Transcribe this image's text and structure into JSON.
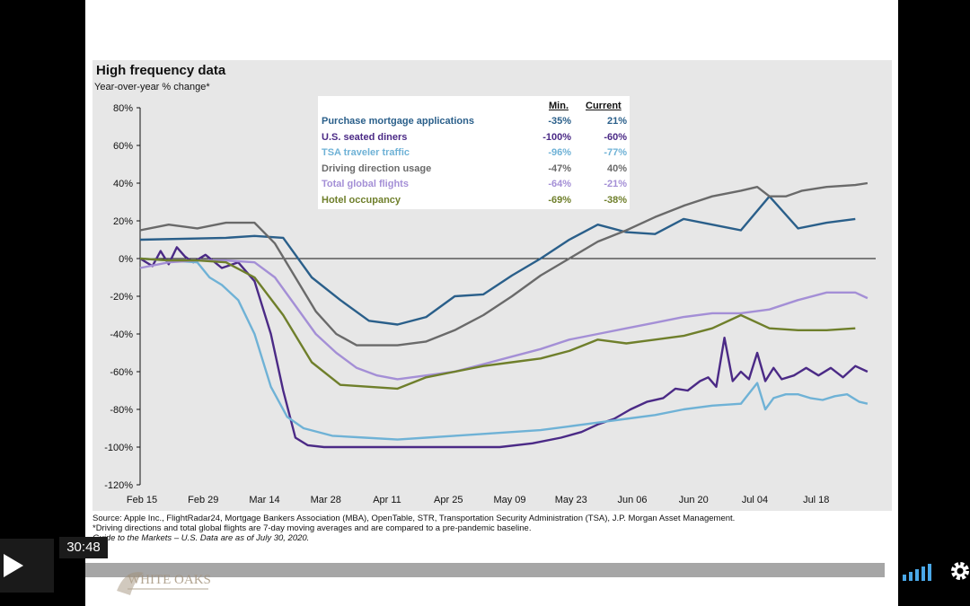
{
  "chart": {
    "title": "High frequency data",
    "subtitle": "Year-over-year % change*",
    "legend_headers": {
      "min": "Min.",
      "current": "Current"
    },
    "source": "Source: Apple Inc., FlightRadar24, Mortgage Bankers Association (MBA), OpenTable, STR, Transportation Security Administration (TSA), J.P. Morgan Asset Management. *Driving directions and total global flights are 7-day moving averages and are compared to a pre-pandemic baseline.",
    "source_line2": "Guide to the Markets – U.S. Data are as of July 30, 2020."
  },
  "player": {
    "timecode": "30:48",
    "logo_text": "WHITE OAKS",
    "play_icon": "play-icon",
    "volume_icon": "volume-icon",
    "settings_icon": "gear-icon"
  },
  "chart_data": {
    "type": "line",
    "title": "High frequency data",
    "subtitle": "Year-over-year % change*",
    "ylabel": "",
    "xlabel": "",
    "ylim": [
      -120,
      80
    ],
    "yticks": [
      "80%",
      "60%",
      "40%",
      "20%",
      "0%",
      "-20%",
      "-40%",
      "-60%",
      "-80%",
      "-100%",
      "-120%"
    ],
    "ytick_values": [
      80,
      60,
      40,
      20,
      0,
      -20,
      -40,
      -60,
      -80,
      -100,
      -120
    ],
    "xticks": [
      "Feb 15",
      "Feb 29",
      "Mar 14",
      "Mar 28",
      "Apr 11",
      "Apr 25",
      "May 09",
      "May 23",
      "Jun 06",
      "Jun 20",
      "Jul 04",
      "Jul 18"
    ],
    "xrange": [
      0,
      180
    ],
    "grid": false,
    "legend_position": "top-center",
    "series": [
      {
        "name": "Purchase mortgage applications",
        "color": "#2a5f8a",
        "min": "-35%",
        "current": "21%",
        "points": [
          [
            0,
            10
          ],
          [
            21,
            11
          ],
          [
            28,
            12
          ],
          [
            35,
            11
          ],
          [
            42,
            -10
          ],
          [
            49,
            -22
          ],
          [
            56,
            -33
          ],
          [
            63,
            -35
          ],
          [
            70,
            -31
          ],
          [
            77,
            -20
          ],
          [
            84,
            -19
          ],
          [
            91,
            -9
          ],
          [
            98,
            0
          ],
          [
            105,
            10
          ],
          [
            112,
            18
          ],
          [
            119,
            14
          ],
          [
            126,
            13
          ],
          [
            133,
            21
          ],
          [
            140,
            18
          ],
          [
            147,
            15
          ],
          [
            154,
            33
          ],
          [
            161,
            16
          ],
          [
            168,
            19
          ],
          [
            175,
            21
          ]
        ]
      },
      {
        "name": "U.S. seated diners",
        "color": "#4b2a86",
        "min": "-100%",
        "current": "-60%",
        "points": [
          [
            0,
            0
          ],
          [
            3,
            -4
          ],
          [
            5,
            4
          ],
          [
            7,
            -3
          ],
          [
            9,
            6
          ],
          [
            11,
            1
          ],
          [
            13,
            -2
          ],
          [
            16,
            2
          ],
          [
            20,
            -5
          ],
          [
            24,
            -2
          ],
          [
            28,
            -12
          ],
          [
            32,
            -40
          ],
          [
            35,
            -70
          ],
          [
            38,
            -95
          ],
          [
            41,
            -99
          ],
          [
            45,
            -100
          ],
          [
            60,
            -100
          ],
          [
            75,
            -100
          ],
          [
            88,
            -100
          ],
          [
            96,
            -98
          ],
          [
            103,
            -95
          ],
          [
            108,
            -92
          ],
          [
            112,
            -88
          ],
          [
            116,
            -85
          ],
          [
            120,
            -80
          ],
          [
            124,
            -76
          ],
          [
            128,
            -74
          ],
          [
            131,
            -69
          ],
          [
            134,
            -70
          ],
          [
            137,
            -65
          ],
          [
            139,
            -63
          ],
          [
            141,
            -68
          ],
          [
            143,
            -42
          ],
          [
            145,
            -65
          ],
          [
            147,
            -60
          ],
          [
            149,
            -64
          ],
          [
            151,
            -50
          ],
          [
            153,
            -65
          ],
          [
            155,
            -58
          ],
          [
            157,
            -64
          ],
          [
            160,
            -62
          ],
          [
            163,
            -58
          ],
          [
            166,
            -62
          ],
          [
            169,
            -58
          ],
          [
            172,
            -63
          ],
          [
            175,
            -57
          ],
          [
            178,
            -60
          ]
        ]
      },
      {
        "name": "TSA traveler traffic",
        "color": "#6fb2d6",
        "min": "-96%",
        "current": "-77%",
        "points": [
          [
            0,
            0
          ],
          [
            14,
            -2
          ],
          [
            17,
            -10
          ],
          [
            20,
            -14
          ],
          [
            24,
            -22
          ],
          [
            28,
            -40
          ],
          [
            32,
            -68
          ],
          [
            36,
            -84
          ],
          [
            40,
            -90
          ],
          [
            47,
            -94
          ],
          [
            55,
            -95
          ],
          [
            63,
            -96
          ],
          [
            70,
            -95
          ],
          [
            77,
            -94
          ],
          [
            84,
            -93
          ],
          [
            91,
            -92
          ],
          [
            98,
            -91
          ],
          [
            105,
            -89
          ],
          [
            112,
            -87
          ],
          [
            119,
            -85
          ],
          [
            126,
            -83
          ],
          [
            133,
            -80
          ],
          [
            140,
            -78
          ],
          [
            147,
            -77
          ],
          [
            151,
            -66
          ],
          [
            153,
            -80
          ],
          [
            155,
            -74
          ],
          [
            158,
            -72
          ],
          [
            161,
            -72
          ],
          [
            164,
            -74
          ],
          [
            167,
            -75
          ],
          [
            170,
            -73
          ],
          [
            173,
            -72
          ],
          [
            176,
            -76
          ],
          [
            178,
            -77
          ]
        ]
      },
      {
        "name": "Driving direction usage",
        "color": "#6a6a6a",
        "min": "-47%",
        "current": "40%",
        "points": [
          [
            0,
            15
          ],
          [
            7,
            18
          ],
          [
            14,
            16
          ],
          [
            21,
            19
          ],
          [
            28,
            19
          ],
          [
            33,
            8
          ],
          [
            38,
            -10
          ],
          [
            43,
            -28
          ],
          [
            48,
            -40
          ],
          [
            53,
            -46
          ],
          [
            63,
            -46
          ],
          [
            70,
            -44
          ],
          [
            77,
            -38
          ],
          [
            84,
            -30
          ],
          [
            91,
            -20
          ],
          [
            98,
            -9
          ],
          [
            105,
            0
          ],
          [
            112,
            9
          ],
          [
            119,
            15
          ],
          [
            126,
            22
          ],
          [
            133,
            28
          ],
          [
            140,
            33
          ],
          [
            147,
            36
          ],
          [
            151,
            38
          ],
          [
            154,
            33
          ],
          [
            158,
            33
          ],
          [
            162,
            36
          ],
          [
            168,
            38
          ],
          [
            175,
            39
          ],
          [
            178,
            40
          ]
        ]
      },
      {
        "name": "Total global flights",
        "color": "#a48fd6",
        "min": "-64%",
        "current": "-21%",
        "points": [
          [
            0,
            -5
          ],
          [
            7,
            -2
          ],
          [
            14,
            -1
          ],
          [
            21,
            -1
          ],
          [
            28,
            -2
          ],
          [
            33,
            -10
          ],
          [
            38,
            -25
          ],
          [
            43,
            -40
          ],
          [
            48,
            -50
          ],
          [
            53,
            -58
          ],
          [
            58,
            -62
          ],
          [
            63,
            -64
          ],
          [
            70,
            -62
          ],
          [
            77,
            -60
          ],
          [
            84,
            -56
          ],
          [
            91,
            -52
          ],
          [
            98,
            -48
          ],
          [
            105,
            -43
          ],
          [
            112,
            -40
          ],
          [
            119,
            -37
          ],
          [
            126,
            -34
          ],
          [
            133,
            -31
          ],
          [
            140,
            -29
          ],
          [
            147,
            -29
          ],
          [
            154,
            -27
          ],
          [
            161,
            -22
          ],
          [
            168,
            -18
          ],
          [
            175,
            -18
          ],
          [
            178,
            -21
          ]
        ]
      },
      {
        "name": "Hotel occupancy",
        "color": "#6f7f2b",
        "min": "-69%",
        "current": "-38%",
        "points": [
          [
            0,
            0
          ],
          [
            7,
            -1
          ],
          [
            14,
            -1
          ],
          [
            21,
            -2
          ],
          [
            28,
            -10
          ],
          [
            35,
            -30
          ],
          [
            42,
            -55
          ],
          [
            49,
            -67
          ],
          [
            56,
            -68
          ],
          [
            63,
            -69
          ],
          [
            70,
            -63
          ],
          [
            77,
            -60
          ],
          [
            84,
            -57
          ],
          [
            91,
            -55
          ],
          [
            98,
            -53
          ],
          [
            105,
            -49
          ],
          [
            112,
            -43
          ],
          [
            119,
            -45
          ],
          [
            126,
            -43
          ],
          [
            133,
            -41
          ],
          [
            140,
            -37
          ],
          [
            147,
            -30
          ],
          [
            154,
            -37
          ],
          [
            161,
            -38
          ],
          [
            168,
            -38
          ],
          [
            175,
            -37
          ]
        ]
      }
    ]
  }
}
